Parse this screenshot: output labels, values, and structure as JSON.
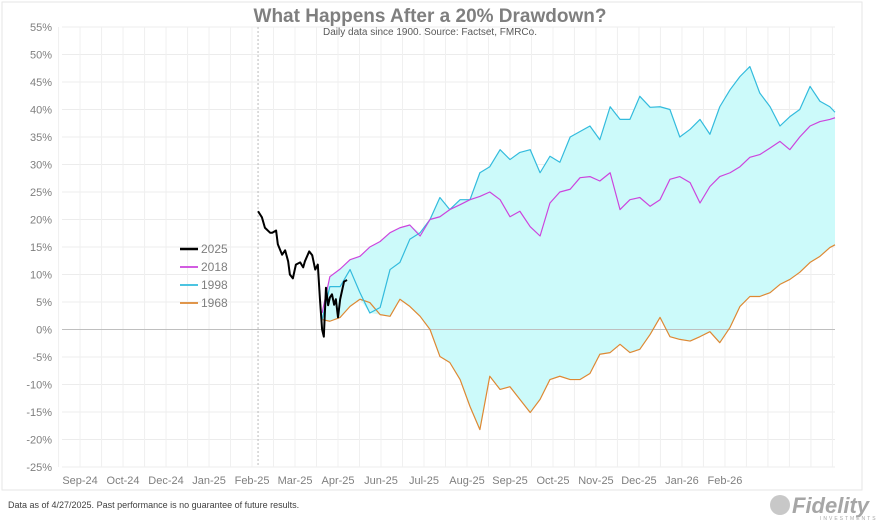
{
  "chart_data": {
    "type": "line",
    "title": "What Happens After a 20% Drawdown?",
    "subtitle": "Daily data since 1900.  Source: Factset, FMRCo.",
    "xlabel": "",
    "ylabel": "",
    "x_tick_labels": [
      "Sep-24",
      "Oct-24",
      "Dec-24",
      "Jan-25",
      "Feb-25",
      "Mar-25",
      "Apr-25",
      "Jun-25",
      "Jul-25",
      "Aug-25",
      "Sep-25",
      "Oct-25",
      "Nov-25",
      "Dec-25",
      "Jan-26",
      "Feb-26"
    ],
    "x_units": "tick-label index (Sep-24 = 0)",
    "xlim": [
      -0.42,
      17.56
    ],
    "y_tick_labels": [
      "55%",
      "50%",
      "45%",
      "40%",
      "35%",
      "30%",
      "25%",
      "20%",
      "15%",
      "10%",
      "5%",
      "0%",
      "-5%",
      "-10%",
      "-15%",
      "-20%",
      "-25%"
    ],
    "ylim": [
      -25,
      55
    ],
    "y_ticks": [
      55,
      50,
      45,
      40,
      35,
      30,
      25,
      20,
      15,
      10,
      5,
      0,
      -5,
      -10,
      -15,
      -20,
      -25
    ],
    "grid": true,
    "legend_position": "left-middle",
    "colors": {
      "2025": "#000000",
      "2018": "#cc44dd",
      "1998": "#33bbdd",
      "1968": "#dd8833",
      "band": "#ccfafa"
    },
    "shaded_band": "range between analog paths",
    "series_2025": {
      "name": "2025",
      "x": [
        4.14,
        4.23,
        4.3,
        4.42,
        4.47,
        4.56,
        4.6,
        4.7,
        4.77,
        4.84,
        4.88,
        4.95,
        5.02,
        5.12,
        5.19,
        5.23,
        5.33,
        5.4,
        5.47,
        5.53,
        5.58,
        5.63,
        5.67,
        5.72,
        5.77,
        5.81,
        5.86,
        5.91,
        5.95,
        6.0,
        6.05,
        6.14,
        6.21
      ],
      "values": [
        21.5,
        20.4,
        18.5,
        17.6,
        17.6,
        18,
        15.5,
        13.6,
        14.4,
        12.4,
        10,
        9.3,
        11.8,
        12.2,
        11.3,
        12.4,
        14.2,
        13.5,
        10.9,
        11.8,
        5.5,
        0,
        -1.3,
        7.6,
        4.4,
        5.8,
        6.4,
        4.5,
        5.5,
        2.2,
        5.5,
        8.7,
        9
      ]
    },
    "analog_x": [
      5.63,
      5.81,
      6.05,
      6.28,
      6.51,
      6.74,
      6.98,
      7.21,
      7.44,
      7.67,
      7.91,
      8.14,
      8.37,
      8.6,
      8.84,
      9.07,
      9.3,
      9.53,
      9.77,
      10.0,
      10.23,
      10.47,
      10.7,
      10.93,
      11.16,
      11.4,
      11.63,
      11.86,
      12.09,
      12.33,
      12.56,
      12.79,
      13.02,
      13.26,
      13.49,
      13.72,
      13.95,
      14.19,
      14.42,
      14.65,
      14.88,
      15.12,
      15.35,
      15.58,
      15.81,
      16.05,
      16.28,
      16.51,
      16.74,
      16.98,
      17.21,
      17.44,
      17.56
    ],
    "series": [
      {
        "name": "2018",
        "values": [
          3,
          9.6,
          11,
          12.7,
          13.3,
          15,
          16,
          17.6,
          18.5,
          19,
          17,
          20,
          20.5,
          21.8,
          22.7,
          23.6,
          24.2,
          25,
          23.6,
          20.5,
          21.5,
          18.7,
          17,
          23,
          25,
          25.5,
          27.6,
          27.8,
          27,
          28.5,
          21.8,
          23.6,
          24,
          22.4,
          23.6,
          27.3,
          27.8,
          26.7,
          23,
          26,
          27.8,
          28.5,
          29.6,
          31.3,
          31.8,
          33,
          34.2,
          32.7,
          35,
          37,
          37.8,
          38.2,
          38.5
        ]
      },
      {
        "name": "1998",
        "values": [
          1.8,
          7.8,
          7.8,
          10.9,
          6.7,
          3,
          4,
          10.9,
          12.2,
          16.4,
          17.6,
          20,
          24,
          21.8,
          23.6,
          23.6,
          28.5,
          29.6,
          32.7,
          30.9,
          32.2,
          32.7,
          28.5,
          31.5,
          30.4,
          35,
          36,
          37,
          34.5,
          40.5,
          38.2,
          38.2,
          42.4,
          40.4,
          40.5,
          40,
          35,
          36.4,
          38.2,
          35.5,
          40.5,
          43.6,
          46,
          47.8,
          43,
          40.5,
          37,
          38.7,
          40,
          44.2,
          41.5,
          40.5,
          39.5
        ]
      },
      {
        "name": "1968",
        "values": [
          1.8,
          1.5,
          2.2,
          4.2,
          5.5,
          4.9,
          2.7,
          2.4,
          5.5,
          4.2,
          2.4,
          0,
          -4.9,
          -6,
          -9.1,
          -14,
          -18.2,
          -8.5,
          -10.9,
          -10.4,
          -12.7,
          -15.1,
          -12.7,
          -9.1,
          -8.5,
          -9.1,
          -9.1,
          -8,
          -4.5,
          -4.2,
          -2.7,
          -4.2,
          -3.6,
          -0.9,
          2.2,
          -1.3,
          -1.8,
          -2.1,
          -1.3,
          -0.4,
          -2.4,
          0.4,
          4.2,
          6,
          6,
          6.7,
          8.2,
          9.1,
          10.4,
          12.2,
          13.3,
          14.9,
          15.4
        ]
      }
    ],
    "legend": [
      "2025",
      "2018",
      "1998",
      "1968"
    ],
    "annotations": {
      "footer": "Data as of 4/27/2025. Past performance is no guarantee of future results.",
      "logo": "Fidelity",
      "logo_sub": "INVESTMENTS"
    }
  }
}
